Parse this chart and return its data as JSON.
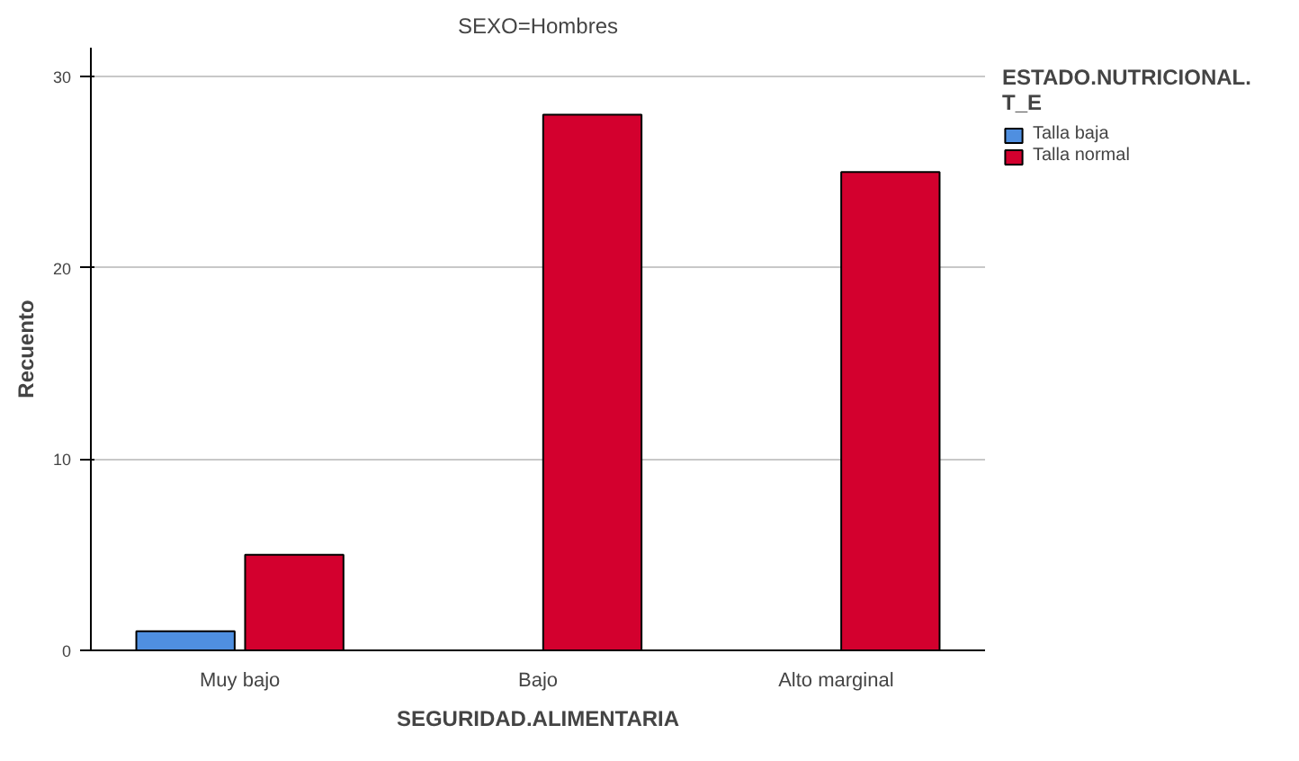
{
  "chart_data": {
    "type": "bar",
    "title": "SEXO=Hombres",
    "xlabel": "SEGURIDAD.ALIMENTARIA",
    "ylabel": "Recuento",
    "legend_title": "ESTADO.NUTRICIONAL.T_E",
    "categories": [
      "Muy bajo",
      "Bajo",
      "Alto marginal"
    ],
    "series": [
      {
        "name": "Talla baja",
        "color": "#4f8fe0",
        "values": [
          1,
          null,
          null
        ]
      },
      {
        "name": "Talla normal",
        "color": "#d3002e",
        "values": [
          5,
          28,
          25
        ]
      }
    ],
    "ylim": [
      0,
      31.5
    ],
    "yticks": [
      0,
      10,
      20,
      30
    ],
    "grid": "y",
    "legend": "top right"
  }
}
